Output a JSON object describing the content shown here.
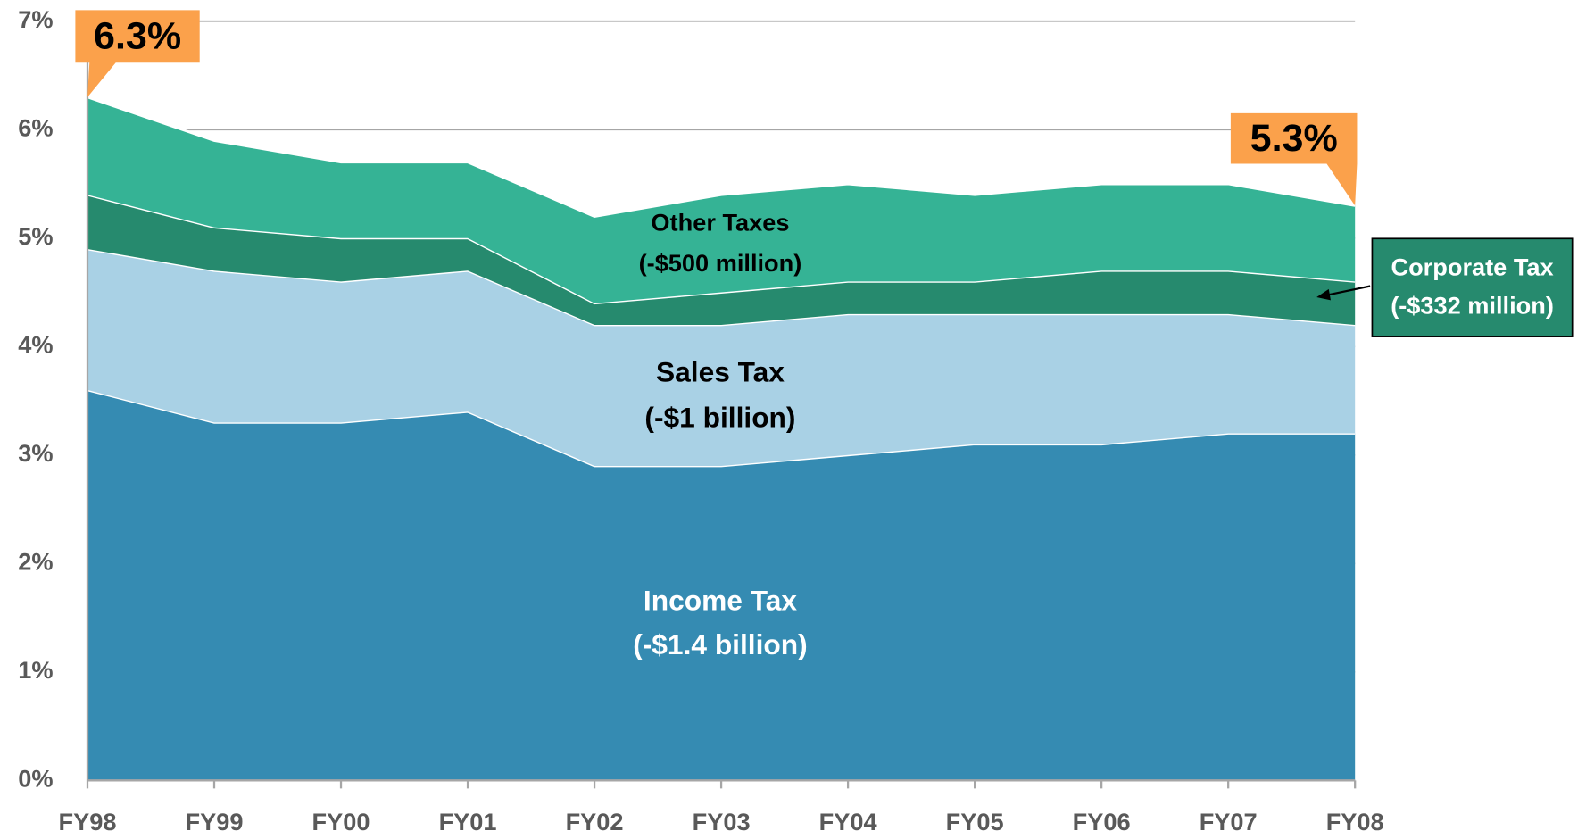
{
  "chart_data": {
    "type": "stacked_area",
    "categories": [
      "FY98",
      "FY99",
      "FY00",
      "FY01",
      "FY02",
      "FY03",
      "FY04",
      "FY05",
      "FY06",
      "FY07",
      "FY08"
    ],
    "series": [
      {
        "name": "Income Tax",
        "change": "(-$1.4 billion)",
        "color": "#358bb2",
        "label_color": "#ffffff",
        "values": [
          3.6,
          3.3,
          3.3,
          3.4,
          2.9,
          2.9,
          3.0,
          3.1,
          3.1,
          3.2,
          3.2
        ]
      },
      {
        "name": "Sales Tax",
        "change": "(-$1 billion)",
        "color": "#a9d1e5",
        "label_color": "#000000",
        "values": [
          1.3,
          1.4,
          1.3,
          1.3,
          1.3,
          1.3,
          1.3,
          1.2,
          1.2,
          1.1,
          1.0
        ]
      },
      {
        "name": "Corporate Tax",
        "change": "(-$332 million)",
        "color": "#268a6e",
        "label_color": "#ffffff",
        "values": [
          0.5,
          0.4,
          0.4,
          0.3,
          0.2,
          0.3,
          0.3,
          0.3,
          0.4,
          0.4,
          0.4
        ]
      },
      {
        "name": "Other Taxes",
        "change": "(-$500 million)",
        "color": "#35b395",
        "label_color": "#000000",
        "values": [
          0.9,
          0.8,
          0.7,
          0.7,
          0.8,
          0.9,
          0.9,
          0.8,
          0.8,
          0.8,
          0.7
        ]
      }
    ],
    "annotations": [
      {
        "text": "6.3%"
      },
      {
        "text": "5.3%"
      }
    ],
    "ylim": [
      0,
      7
    ],
    "yticks": [
      {
        "value": 0,
        "label": "0%"
      },
      {
        "value": 1,
        "label": "1%"
      },
      {
        "value": 2,
        "label": "2%"
      },
      {
        "value": 3,
        "label": "3%"
      },
      {
        "value": 4,
        "label": "4%"
      },
      {
        "value": 5,
        "label": "5%"
      },
      {
        "value": 6,
        "label": "6%"
      },
      {
        "value": 7,
        "label": "7%"
      }
    ],
    "grid": true
  }
}
